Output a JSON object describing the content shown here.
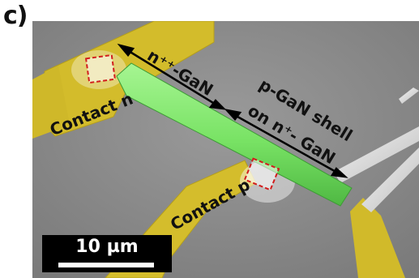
{
  "figure": {
    "panel_label": "c)",
    "annotations": {
      "n_region_label": "n⁺⁺-GaN",
      "shell_label_line1": "p-GaN shell",
      "shell_label_line2": "on n⁺- GaN",
      "contact_n_label": "Contact n",
      "contact_p_label": "Contact p"
    },
    "scale_bar": {
      "label": "10 µm"
    },
    "colors": {
      "sem_background": "#8c8c8c",
      "contact_gold": "#d8c02e",
      "nanowire_green": "#7ee86c",
      "marker_red": "#d21d1d",
      "arrow_black": "#000000"
    }
  }
}
